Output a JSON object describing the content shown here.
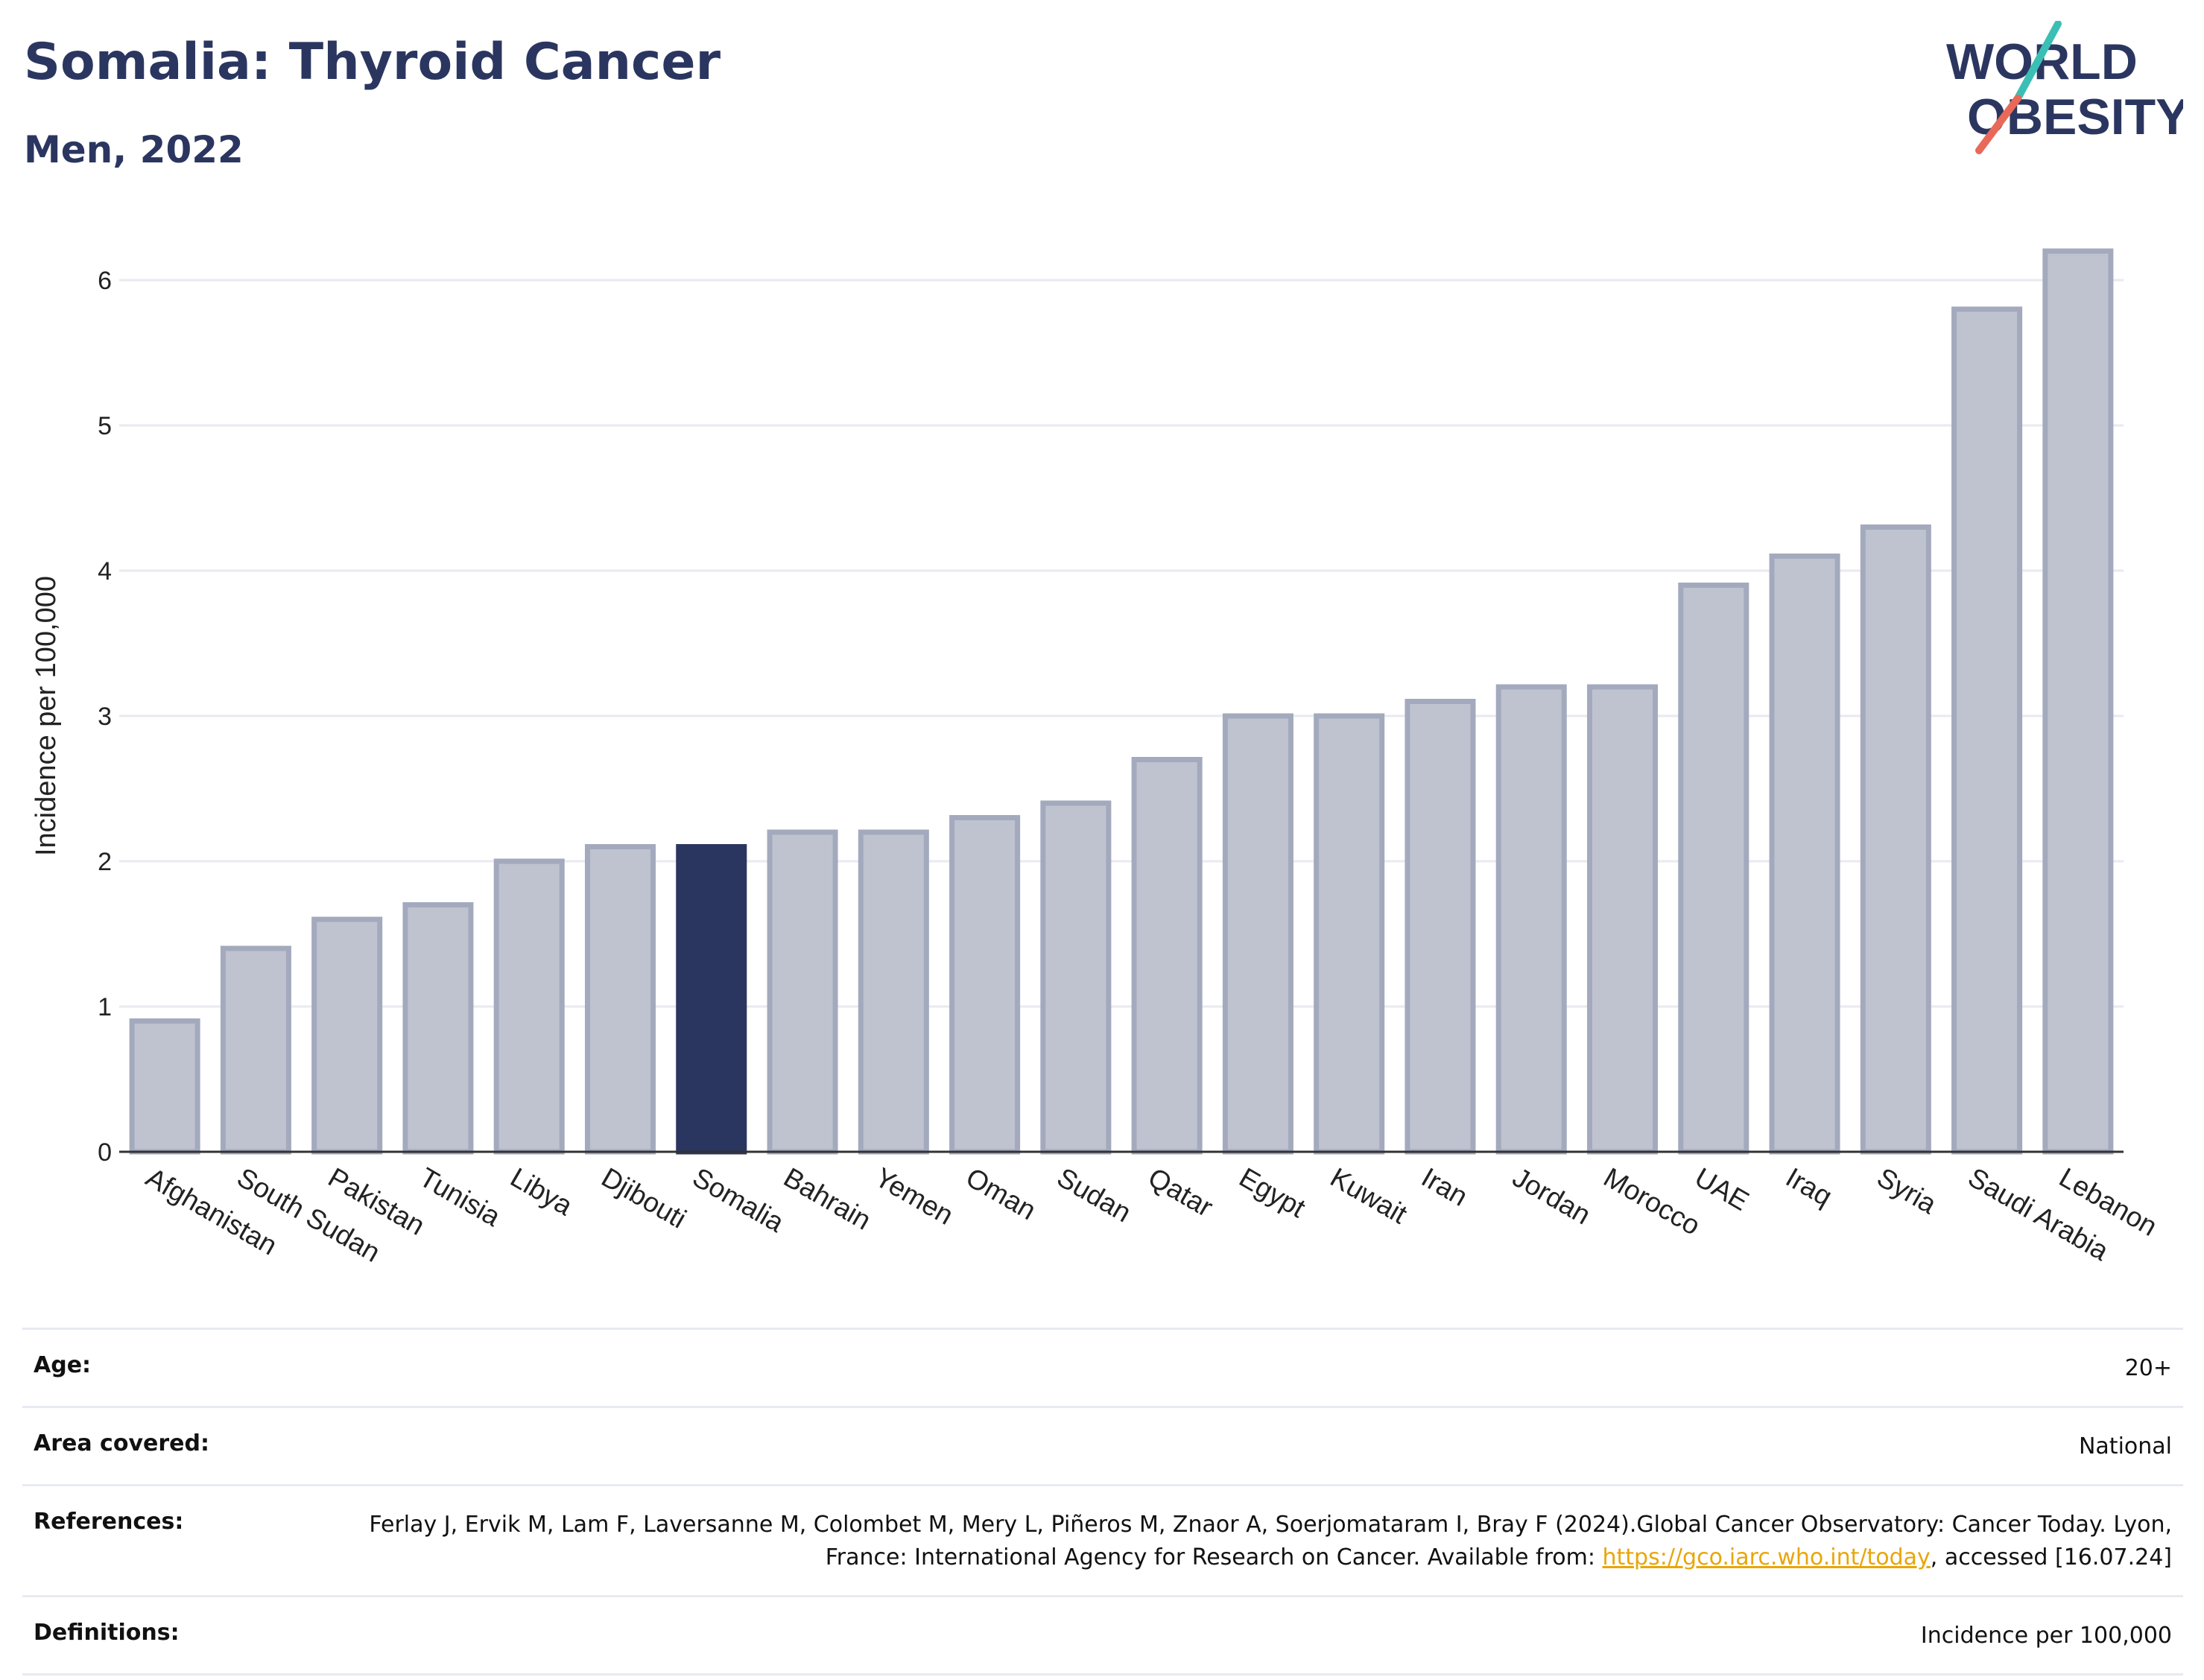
{
  "header": {
    "title": "Somalia: Thyroid Cancer",
    "subtitle": "Men, 2022"
  },
  "logo": {
    "line1": "WORLD",
    "line2": "OBESITY"
  },
  "colors": {
    "highlight": "#2b3660",
    "bar_fill": "#bfc3d0",
    "bar_stroke": "#a4aabd",
    "grid": "#e9eaf0",
    "logo_navy": "#2b3660",
    "logo_teal": "#3bbfb5",
    "logo_coral": "#e8695a"
  },
  "chart_data": {
    "type": "bar",
    "ylabel": "Incidence per 100,000",
    "ylim": [
      0,
      6.5
    ],
    "yticks": [
      0,
      1,
      2,
      3,
      4,
      5,
      6
    ],
    "grid": true,
    "highlight": "Somalia",
    "categories": [
      "Afghanistan",
      "South Sudan",
      "Pakistan",
      "Tunisia",
      "Libya",
      "Djibouti",
      "Somalia",
      "Bahrain",
      "Yemen",
      "Oman",
      "Sudan",
      "Qatar",
      "Egypt",
      "Kuwait",
      "Iran",
      "Jordan",
      "Morocco",
      "UAE",
      "Iraq",
      "Syria",
      "Saudi Arabia",
      "Lebanon"
    ],
    "values": [
      0.9,
      1.4,
      1.6,
      1.7,
      2.0,
      2.1,
      2.1,
      2.2,
      2.2,
      2.3,
      2.4,
      2.7,
      3.0,
      3.0,
      3.1,
      3.2,
      3.2,
      3.9,
      4.1,
      4.3,
      5.8,
      6.2
    ]
  },
  "info": {
    "age_label": "Age:",
    "age_value": "20+",
    "area_label": "Area covered:",
    "area_value": "National",
    "references_label": "References:",
    "references_text": "Ferlay J, Ervik M, Lam F, Laversanne M, Colombet M, Mery L, Piñeros M, Znaor A, Soerjomataram I, Bray F (2024).Global Cancer Observatory: Cancer Today. Lyon, France: International Agency for Research on Cancer. Available from: ",
    "references_link": "https://gco.iarc.who.int/today",
    "references_suffix": ", accessed [16.07.24]",
    "definitions_label": "Definitions:",
    "definitions_value": "Incidence per 100,000"
  }
}
